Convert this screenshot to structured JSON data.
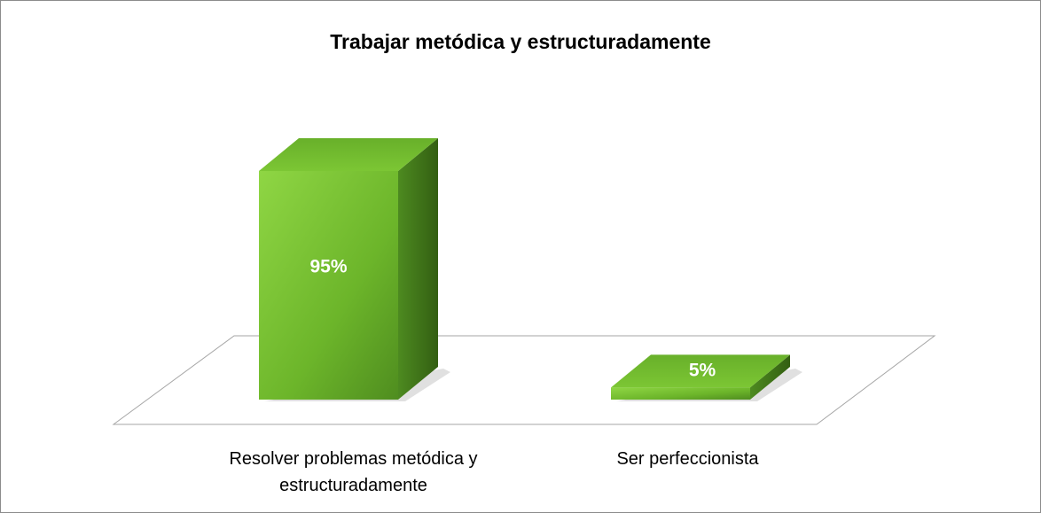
{
  "chart_data": {
    "type": "bar3d",
    "title": "Trabajar metódica y estructuradamente",
    "categories": [
      "Resolver problemas metódica y estructuradamente",
      "Ser perfeccionista"
    ],
    "values": [
      95,
      5
    ],
    "value_labels": [
      "95%",
      "5%"
    ],
    "color": "#76c22f"
  }
}
